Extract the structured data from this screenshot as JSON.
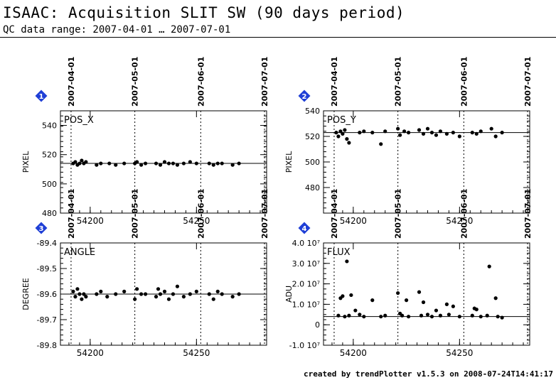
{
  "header": {
    "title": "ISAAC: Acquisition SLIT SW (90 days period)",
    "subtitle": "QC data range: 2007-04-01 … 2007-07-01"
  },
  "footer": {
    "credit": "created by trendPlotter v1.5.3 on 2008-07-24T14:41:17"
  },
  "colors": {
    "badge": "#1f3fd6",
    "points": "#000000"
  },
  "chart_data": [
    {
      "type": "scatter",
      "index": "1",
      "label": "POS_X",
      "ylabel": "PIXEL",
      "xlim": [
        54186,
        54283
      ],
      "ylim": [
        480,
        550
      ],
      "yticks": [
        480,
        500,
        520,
        540
      ],
      "ytick_labels": [
        "480",
        "500",
        "520",
        "540"
      ],
      "xticks": [
        54200,
        54250
      ],
      "date_ticks": [
        {
          "x": 54191,
          "label": "2007-04-01"
        },
        {
          "x": 54221,
          "label": "2007-05-01"
        },
        {
          "x": 54252,
          "label": "2007-06-01"
        },
        {
          "x": 54282,
          "label": "2007-07-01"
        }
      ],
      "reference": 514,
      "x": [
        54192,
        54193,
        54194,
        54195,
        54196,
        54197,
        54198,
        54203,
        54205,
        54209,
        54212,
        54216,
        54221,
        54222,
        54224,
        54226,
        54231,
        54233,
        54235,
        54237,
        54239,
        54241,
        54244,
        54247,
        54250,
        54256,
        54258,
        54260,
        54262,
        54267,
        54270
      ],
      "y": [
        514,
        515,
        513,
        514,
        516,
        514,
        515,
        513,
        514,
        514,
        513,
        514,
        514,
        515,
        513,
        514,
        514,
        513,
        515,
        514,
        514,
        513,
        514,
        515,
        514,
        514,
        513,
        514,
        514,
        513,
        514
      ]
    },
    {
      "type": "scatter",
      "index": "2",
      "label": "POS_Y",
      "ylabel": "PIXEL",
      "xlim": [
        54186,
        54283
      ],
      "ylim": [
        460,
        540
      ],
      "yticks": [
        480,
        500,
        520,
        540
      ],
      "ytick_labels": [
        "480",
        "500",
        "520",
        "540"
      ],
      "xticks": [
        54200,
        54250
      ],
      "date_ticks": [
        {
          "x": 54191,
          "label": "2007-04-01"
        },
        {
          "x": 54221,
          "label": "2007-05-01"
        },
        {
          "x": 54252,
          "label": "2007-06-01"
        },
        {
          "x": 54282,
          "label": "2007-07-01"
        }
      ],
      "reference": 523,
      "x": [
        54192,
        54193,
        54194,
        54195,
        54196,
        54197,
        54198,
        54203,
        54205,
        54209,
        54213,
        54215,
        54221,
        54222,
        54224,
        54226,
        54231,
        54233,
        54235,
        54237,
        54239,
        54241,
        54244,
        54247,
        54250,
        54256,
        54258,
        54260,
        54265,
        54267,
        54270
      ],
      "y": [
        523,
        520,
        524,
        522,
        525,
        518,
        515,
        523,
        524,
        523,
        514,
        524,
        526,
        521,
        524,
        523,
        525,
        522,
        526,
        523,
        521,
        524,
        522,
        523,
        520,
        523,
        522,
        524,
        526,
        520,
        523
      ]
    },
    {
      "type": "scatter",
      "index": "3",
      "label": "ANGLE",
      "ylabel": "DEGREE",
      "xlim": [
        54186,
        54283
      ],
      "ylim": [
        -89.8,
        -89.4
      ],
      "yticks": [
        -89.8,
        -89.7,
        -89.6,
        -89.5,
        -89.4
      ],
      "ytick_labels": [
        "-89.8",
        "-89.7",
        "-89.6",
        "-89.5",
        "-89.4"
      ],
      "xticks": [
        54200,
        54250
      ],
      "date_ticks": [
        {
          "x": 54191,
          "label": "2007-04-01"
        },
        {
          "x": 54221,
          "label": "2007-05-01"
        },
        {
          "x": 54252,
          "label": "2007-06-01"
        },
        {
          "x": 54282,
          "label": "2007-07-01"
        }
      ],
      "reference": -89.6,
      "x": [
        54192,
        54193,
        54194,
        54195,
        54196,
        54197,
        54198,
        54203,
        54205,
        54208,
        54212,
        54216,
        54221,
        54222,
        54224,
        54226,
        54231,
        54232,
        54233,
        54235,
        54237,
        54239,
        54241,
        54244,
        54247,
        54250,
        54256,
        54258,
        54260,
        54262,
        54267,
        54270
      ],
      "y": [
        -89.59,
        -89.61,
        -89.58,
        -89.6,
        -89.62,
        -89.6,
        -89.61,
        -89.6,
        -89.59,
        -89.61,
        -89.6,
        -89.59,
        -89.62,
        -89.58,
        -89.6,
        -89.6,
        -89.61,
        -89.58,
        -89.6,
        -89.59,
        -89.62,
        -89.6,
        -89.57,
        -89.61,
        -89.6,
        -89.59,
        -89.6,
        -89.62,
        -89.59,
        -89.6,
        -89.61,
        -89.6
      ]
    },
    {
      "type": "scatter",
      "index": "4",
      "label": "FLUX",
      "ylabel": "ADU",
      "xlim": [
        54186,
        54283
      ],
      "ylim": [
        -10000000,
        40000000
      ],
      "yticks": [
        -10000000,
        0,
        10000000,
        20000000,
        30000000,
        40000000
      ],
      "ytick_labels": [
        "-1.0 10⁷",
        "0",
        "1.0 10⁷",
        "2.0 10⁷",
        "3.0 10⁷",
        "4.0 10⁷"
      ],
      "xticks": [
        54200,
        54250
      ],
      "date_ticks": [
        {
          "x": 54191,
          "label": "2007-04-01"
        },
        {
          "x": 54221,
          "label": "2007-05-01"
        },
        {
          "x": 54252,
          "label": "2007-06-01"
        },
        {
          "x": 54282,
          "label": "2007-07-01"
        }
      ],
      "reference": 4000000,
      "x": [
        54193,
        54194,
        54195,
        54196,
        54197,
        54198,
        54199,
        54201,
        54203,
        54205,
        54209,
        54213,
        54215,
        54221,
        54222,
        54223,
        54225,
        54226,
        54231,
        54232,
        54233,
        54235,
        54237,
        54239,
        54241,
        54244,
        54245,
        54247,
        54250,
        54256,
        54257,
        54258,
        54260,
        54263,
        54264,
        54267,
        54268,
        54270
      ],
      "y": [
        4500000,
        13000000,
        14000000,
        4000000,
        31000000,
        4500000,
        14500000,
        7000000,
        5000000,
        4000000,
        12000000,
        4000000,
        4500000,
        15500000,
        5500000,
        4500000,
        12000000,
        4000000,
        16000000,
        4500000,
        11000000,
        5000000,
        4000000,
        7000000,
        4500000,
        10000000,
        5000000,
        9000000,
        4000000,
        4500000,
        8000000,
        7500000,
        4000000,
        4500000,
        28500000,
        13000000,
        4000000,
        3500000
      ]
    }
  ]
}
